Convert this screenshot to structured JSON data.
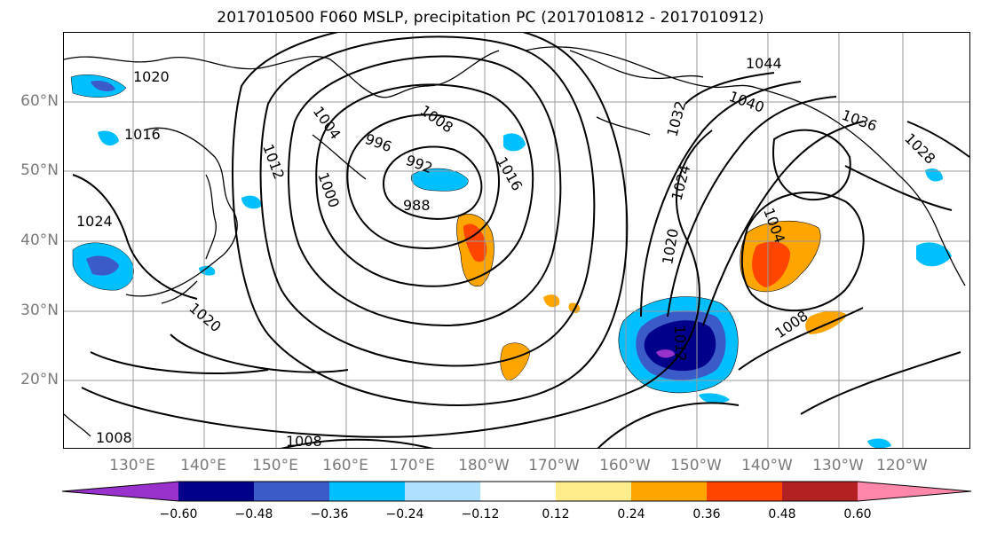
{
  "title": "2017010500 F060 MSLP, precipitation PC (2017010812 - 2017010912)",
  "lat_labels": [
    "60°N",
    "50°N",
    "40°N",
    "30°N",
    "20°N"
  ],
  "lon_labels": [
    "130°E",
    "140°E",
    "150°E",
    "160°E",
    "170°E",
    "180°W",
    "170°W",
    "160°W",
    "150°W",
    "140°W",
    "130°W",
    "120°W"
  ],
  "isobar_labels": [
    "1020",
    "1016",
    "1024",
    "1012",
    "1004",
    "1000",
    "996",
    "992",
    "988",
    "1008",
    "1016",
    "1032",
    "1024",
    "1020",
    "1044",
    "1040",
    "1036",
    "1028",
    "1004",
    "1008",
    "1012",
    "1020",
    "1008",
    "1008"
  ],
  "colorbar": {
    "tick_labels": [
      "−0.60",
      "−0.48",
      "−0.36",
      "−0.24",
      "−0.12",
      "0.12",
      "0.24",
      "0.36",
      "0.48",
      "0.60"
    ],
    "colors": [
      "#9932cc",
      "#00008b",
      "#3a5bc8",
      "#00bfff",
      "#b0e0ff",
      "#ffffff",
      "#ffec8b",
      "#ffa500",
      "#ff4500",
      "#b22222",
      "#ff88aa"
    ]
  }
}
